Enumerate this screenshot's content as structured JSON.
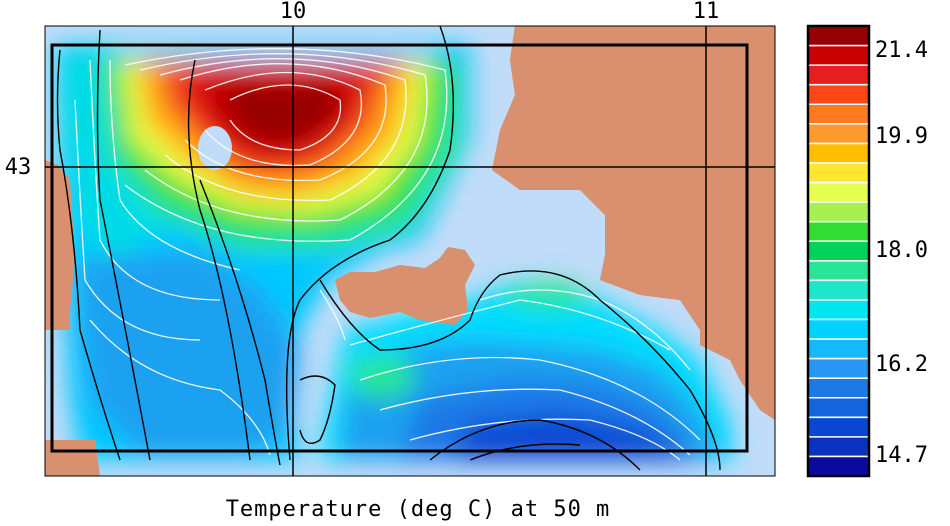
{
  "map": {
    "title": "Temperature (deg C) at 50 m",
    "lon_ticks": [
      "10",
      "11"
    ],
    "lat_ticks": [
      "43"
    ],
    "land_color": "#d8906e",
    "shelf_color": "#c0dcf8",
    "grid_color": "#000000"
  },
  "colorbar": {
    "labels": [
      "21.4",
      "19.9",
      "18.0",
      "16.2",
      "14.7"
    ],
    "colors": [
      "#960000",
      "#c80000",
      "#e61e1e",
      "#ff4614",
      "#ff7a20",
      "#ff9a2e",
      "#ffbe00",
      "#ffe632",
      "#e6ff50",
      "#a8f050",
      "#32dc32",
      "#00d25a",
      "#28e696",
      "#1ee6c8",
      "#00e6f0",
      "#00d2ff",
      "#14b9ff",
      "#2896f5",
      "#1e78e6",
      "#1464dc",
      "#0a46d2",
      "#0a32be",
      "#0a0aa0"
    ]
  }
}
